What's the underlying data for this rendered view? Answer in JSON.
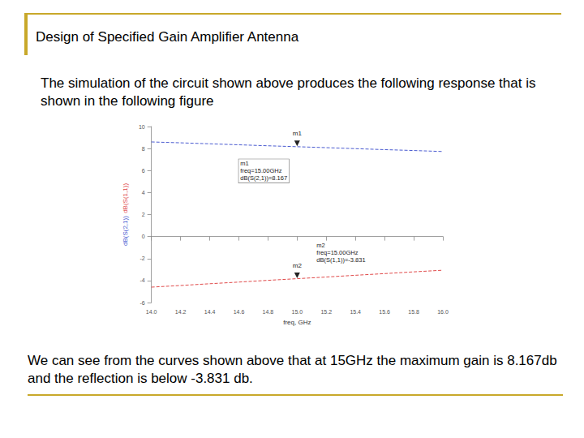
{
  "slide": {
    "title": "Design of Specified Gain Amplifier Antenna",
    "text_above": "The simulation of the circuit shown above produces the following response that is shown in the following figure",
    "text_below": "We can see from the curves shown above that at 15GHz the maximum gain is 8.167db and the reflection is below -3.831 db."
  },
  "chart_data": {
    "type": "line",
    "xlabel": "freq, GHz",
    "x": [
      14.0,
      14.2,
      14.4,
      14.6,
      14.8,
      15.0,
      15.2,
      15.4,
      15.6,
      15.8,
      16.0
    ],
    "series": [
      {
        "name": "dB(S(2,1))",
        "color": "#4a5bd0",
        "line_style": "dashed",
        "values": [
          8.6,
          8.52,
          8.43,
          8.34,
          8.25,
          8.167,
          8.08,
          7.99,
          7.9,
          7.82,
          7.73
        ]
      },
      {
        "name": "dB(S(1,1))",
        "color": "#e04a4a",
        "line_style": "dashed",
        "values": [
          -4.6,
          -4.45,
          -4.29,
          -4.14,
          -3.98,
          -3.831,
          -3.68,
          -3.52,
          -3.37,
          -3.21,
          -3.06
        ]
      }
    ],
    "xlim": [
      14.0,
      16.0
    ],
    "xticks": [
      {
        "value": 14.0,
        "label": "14.0"
      },
      {
        "value": 14.2,
        "label": "14.2"
      },
      {
        "value": 14.4,
        "label": "14.4"
      },
      {
        "value": 14.6,
        "label": "14.6"
      },
      {
        "value": 14.8,
        "label": "14.8"
      },
      {
        "value": 15.0,
        "label": "15.0"
      },
      {
        "value": 15.2,
        "label": "15.2"
      },
      {
        "value": 15.4,
        "label": "15.4"
      },
      {
        "value": 15.6,
        "label": "15.6"
      },
      {
        "value": 15.8,
        "label": "15.8"
      },
      {
        "value": 16.0,
        "label": "16.0"
      }
    ],
    "ylim": [
      -6,
      10
    ],
    "yticks": [
      -6,
      -4,
      -2,
      0,
      2,
      4,
      6,
      8,
      10
    ],
    "grid": false,
    "markers": [
      {
        "series": "dB(S(2,1))",
        "x": 15.0,
        "y": 8.167,
        "text": [
          "m1",
          "freq=15.00GHz",
          "dB(S(2,1))=8.167"
        ]
      },
      {
        "series": "dB(S(1,1))",
        "x": 15.0,
        "y": -3.831,
        "text": [
          "m2",
          "freq=15.00GHz",
          "dB(S(1,1))=-3.831"
        ]
      }
    ]
  }
}
